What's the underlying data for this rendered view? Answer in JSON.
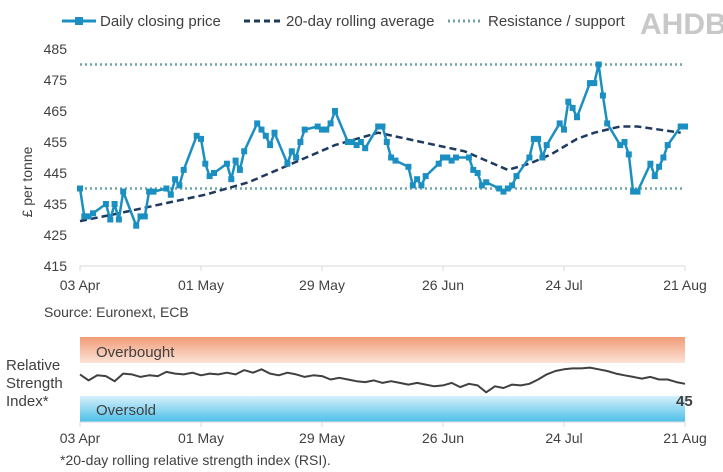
{
  "brand": {
    "logo_text": "AHDB",
    "color": "#c8c8c8"
  },
  "colors": {
    "price": "#1b8fc1",
    "average": "#1f3a5f",
    "resistance": "#6fa3a3",
    "overbought": "#f09c78",
    "oversold": "#4dbfe8",
    "rsi_line": "#404040"
  },
  "chart_data": [
    {
      "type": "line",
      "ylabel": "£ per tonne",
      "ylim": [
        415,
        485
      ],
      "yticks": [
        415,
        425,
        435,
        445,
        455,
        465,
        475,
        485
      ],
      "xlim": [
        1,
        140
      ],
      "xticks": [
        {
          "day": 1,
          "label": "03 Apr"
        },
        {
          "day": 29,
          "label": "01 May"
        },
        {
          "day": 57,
          "label": "29 May"
        },
        {
          "day": 85,
          "label": "26 Jun"
        },
        {
          "day": 113,
          "label": "24 Jul"
        },
        {
          "day": 141,
          "label": "21 Aug"
        }
      ],
      "legend": {
        "placement": "top",
        "entries": [
          "Daily closing price",
          "20-day rolling average",
          "Resistance / support"
        ]
      },
      "series": [
        {
          "name": "Daily closing price",
          "x": [
            1,
            2,
            3,
            4,
            7,
            8,
            9,
            10,
            11,
            14,
            15,
            16,
            17,
            18,
            21,
            22,
            23,
            24,
            25,
            28,
            29,
            30,
            31,
            32,
            35,
            36,
            37,
            38,
            39,
            42,
            43,
            44,
            45,
            46,
            49,
            50,
            51,
            52,
            53,
            56,
            57,
            58,
            59,
            60,
            63,
            64,
            65,
            66,
            67,
            70,
            71,
            72,
            73,
            74,
            77,
            78,
            79,
            80,
            81,
            84,
            85,
            86,
            87,
            88,
            91,
            92,
            93,
            94,
            95,
            98,
            99,
            100,
            101,
            102,
            105,
            106,
            107,
            108,
            109,
            112,
            113,
            114,
            115,
            116,
            119,
            120,
            121,
            122,
            123,
            126,
            127,
            128,
            129,
            130,
            133,
            134,
            135,
            136,
            137,
            140,
            141
          ],
          "y": [
            440,
            431,
            431,
            432,
            435,
            430,
            435,
            430,
            439,
            428,
            431,
            431,
            439,
            439,
            440,
            438,
            443,
            441,
            446,
            457,
            456,
            448,
            444,
            445,
            448,
            443,
            449,
            446,
            452,
            461,
            459,
            457,
            454,
            458,
            448,
            452,
            450,
            455,
            459,
            460,
            459,
            459,
            461,
            465,
            455,
            455,
            454,
            455,
            453,
            460,
            460,
            455,
            450,
            449,
            447,
            441,
            443,
            441,
            444,
            448,
            450,
            450,
            449,
            450,
            450,
            446,
            445,
            441,
            442,
            440,
            439,
            440,
            441,
            444,
            450,
            456,
            456,
            450,
            454,
            461,
            459,
            468,
            466,
            463,
            474,
            474,
            480,
            470,
            461,
            454,
            455,
            451,
            439,
            439,
            448,
            444,
            447,
            450,
            454,
            460,
            460
          ],
          "marker": "square"
        },
        {
          "name": "20-day rolling average",
          "x": [
            1,
            10,
            20,
            30,
            40,
            50,
            60,
            70,
            80,
            90,
            100,
            105,
            110,
            116,
            120,
            126,
            130,
            140
          ],
          "y": [
            429.5,
            432,
            435,
            438,
            442,
            448,
            454,
            458,
            455,
            452,
            446,
            448,
            451,
            456,
            458,
            460,
            460,
            458
          ],
          "style": "dashed"
        }
      ],
      "reference_lines": [
        {
          "name": "Resistance / support",
          "y": 480
        },
        {
          "name": "Resistance / support",
          "y": 440
        }
      ]
    },
    {
      "type": "line",
      "title_lines": [
        "Relative",
        "Strength",
        "Index*"
      ],
      "bands": [
        {
          "label": "Overbought",
          "range": [
            70,
            100
          ]
        },
        {
          "label": "Oversold",
          "range": [
            0,
            30
          ]
        }
      ],
      "ylim": [
        0,
        100
      ],
      "last_value_label": "45",
      "series": [
        {
          "name": "RSI",
          "x": [
            1,
            3,
            5,
            7,
            9,
            11,
            13,
            15,
            17,
            19,
            21,
            23,
            25,
            27,
            29,
            31,
            33,
            35,
            37,
            39,
            41,
            43,
            45,
            47,
            49,
            51,
            53,
            55,
            57,
            59,
            61,
            63,
            65,
            67,
            69,
            71,
            73,
            75,
            77,
            79,
            81,
            83,
            85,
            87,
            89,
            91,
            93,
            95,
            97,
            99,
            101,
            103,
            105,
            107,
            109,
            111,
            113,
            115,
            117,
            119,
            121,
            123,
            125,
            127,
            129,
            131,
            133,
            135,
            137,
            139,
            141
          ],
          "y": [
            56,
            49,
            55,
            54,
            48,
            57,
            56,
            53,
            55,
            54,
            59,
            57,
            56,
            58,
            55,
            57,
            56,
            58,
            56,
            61,
            58,
            62,
            57,
            55,
            58,
            56,
            53,
            55,
            54,
            50,
            52,
            50,
            48,
            47,
            49,
            46,
            48,
            46,
            44,
            46,
            44,
            42,
            43,
            46,
            41,
            45,
            43,
            35,
            42,
            40,
            44,
            43,
            45,
            50,
            56,
            60,
            62,
            63,
            63,
            64,
            62,
            60,
            57,
            55,
            53,
            51,
            53,
            50,
            50,
            47,
            45
          ]
        }
      ],
      "xticks": [
        {
          "day": 1,
          "label": "03 Apr"
        },
        {
          "day": 29,
          "label": "01 May"
        },
        {
          "day": 57,
          "label": "29 May"
        },
        {
          "day": 85,
          "label": "26 Jun"
        },
        {
          "day": 113,
          "label": "24 Jul"
        },
        {
          "day": 141,
          "label": "21 Aug"
        }
      ]
    }
  ],
  "source_text": "Source: Euronext, ECB",
  "footnote": "*20-day rolling relative strength index (RSI)."
}
